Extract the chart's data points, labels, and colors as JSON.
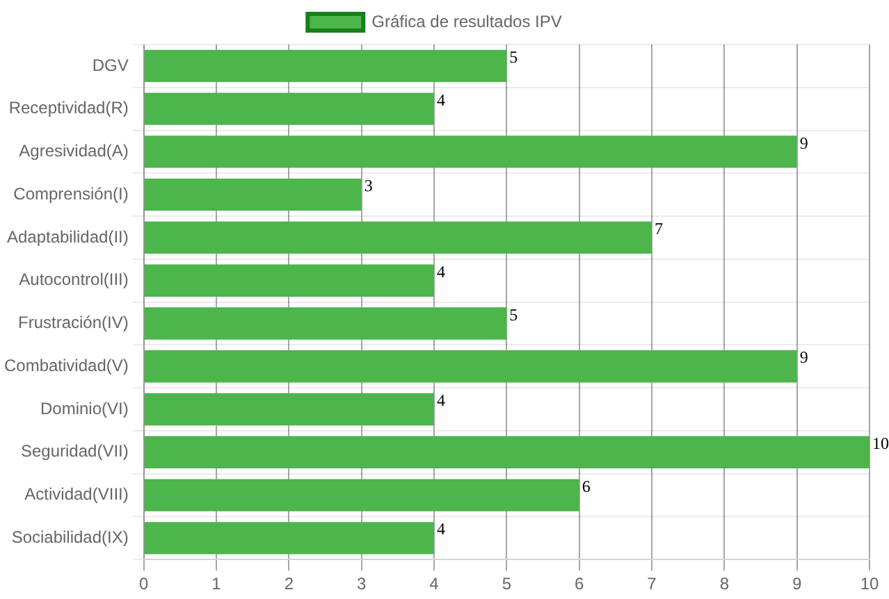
{
  "chart_data": {
    "type": "bar",
    "orientation": "horizontal",
    "categories": [
      "DGV",
      "Receptividad(R)",
      "Agresividad(A)",
      "Comprensión(I)",
      "Adaptabilidad(II)",
      "Autocontrol(III)",
      "Frustración(IV)",
      "Combatividad(V)",
      "Dominio(VI)",
      "Seguridad(VII)",
      "Actividad(VIII)",
      "Sociabilidad(IX)"
    ],
    "series": [
      {
        "name": "Gráfica de resultados IPV",
        "color": "#4cb54c",
        "values": [
          5,
          4,
          9,
          3,
          7,
          4,
          5,
          9,
          4,
          10,
          6,
          4
        ]
      }
    ],
    "xlim": [
      0,
      10
    ],
    "xticks": [
      0,
      1,
      2,
      3,
      4,
      5,
      6,
      7,
      8,
      9,
      10
    ],
    "grid": true,
    "legend": "top",
    "data_labels": true
  }
}
